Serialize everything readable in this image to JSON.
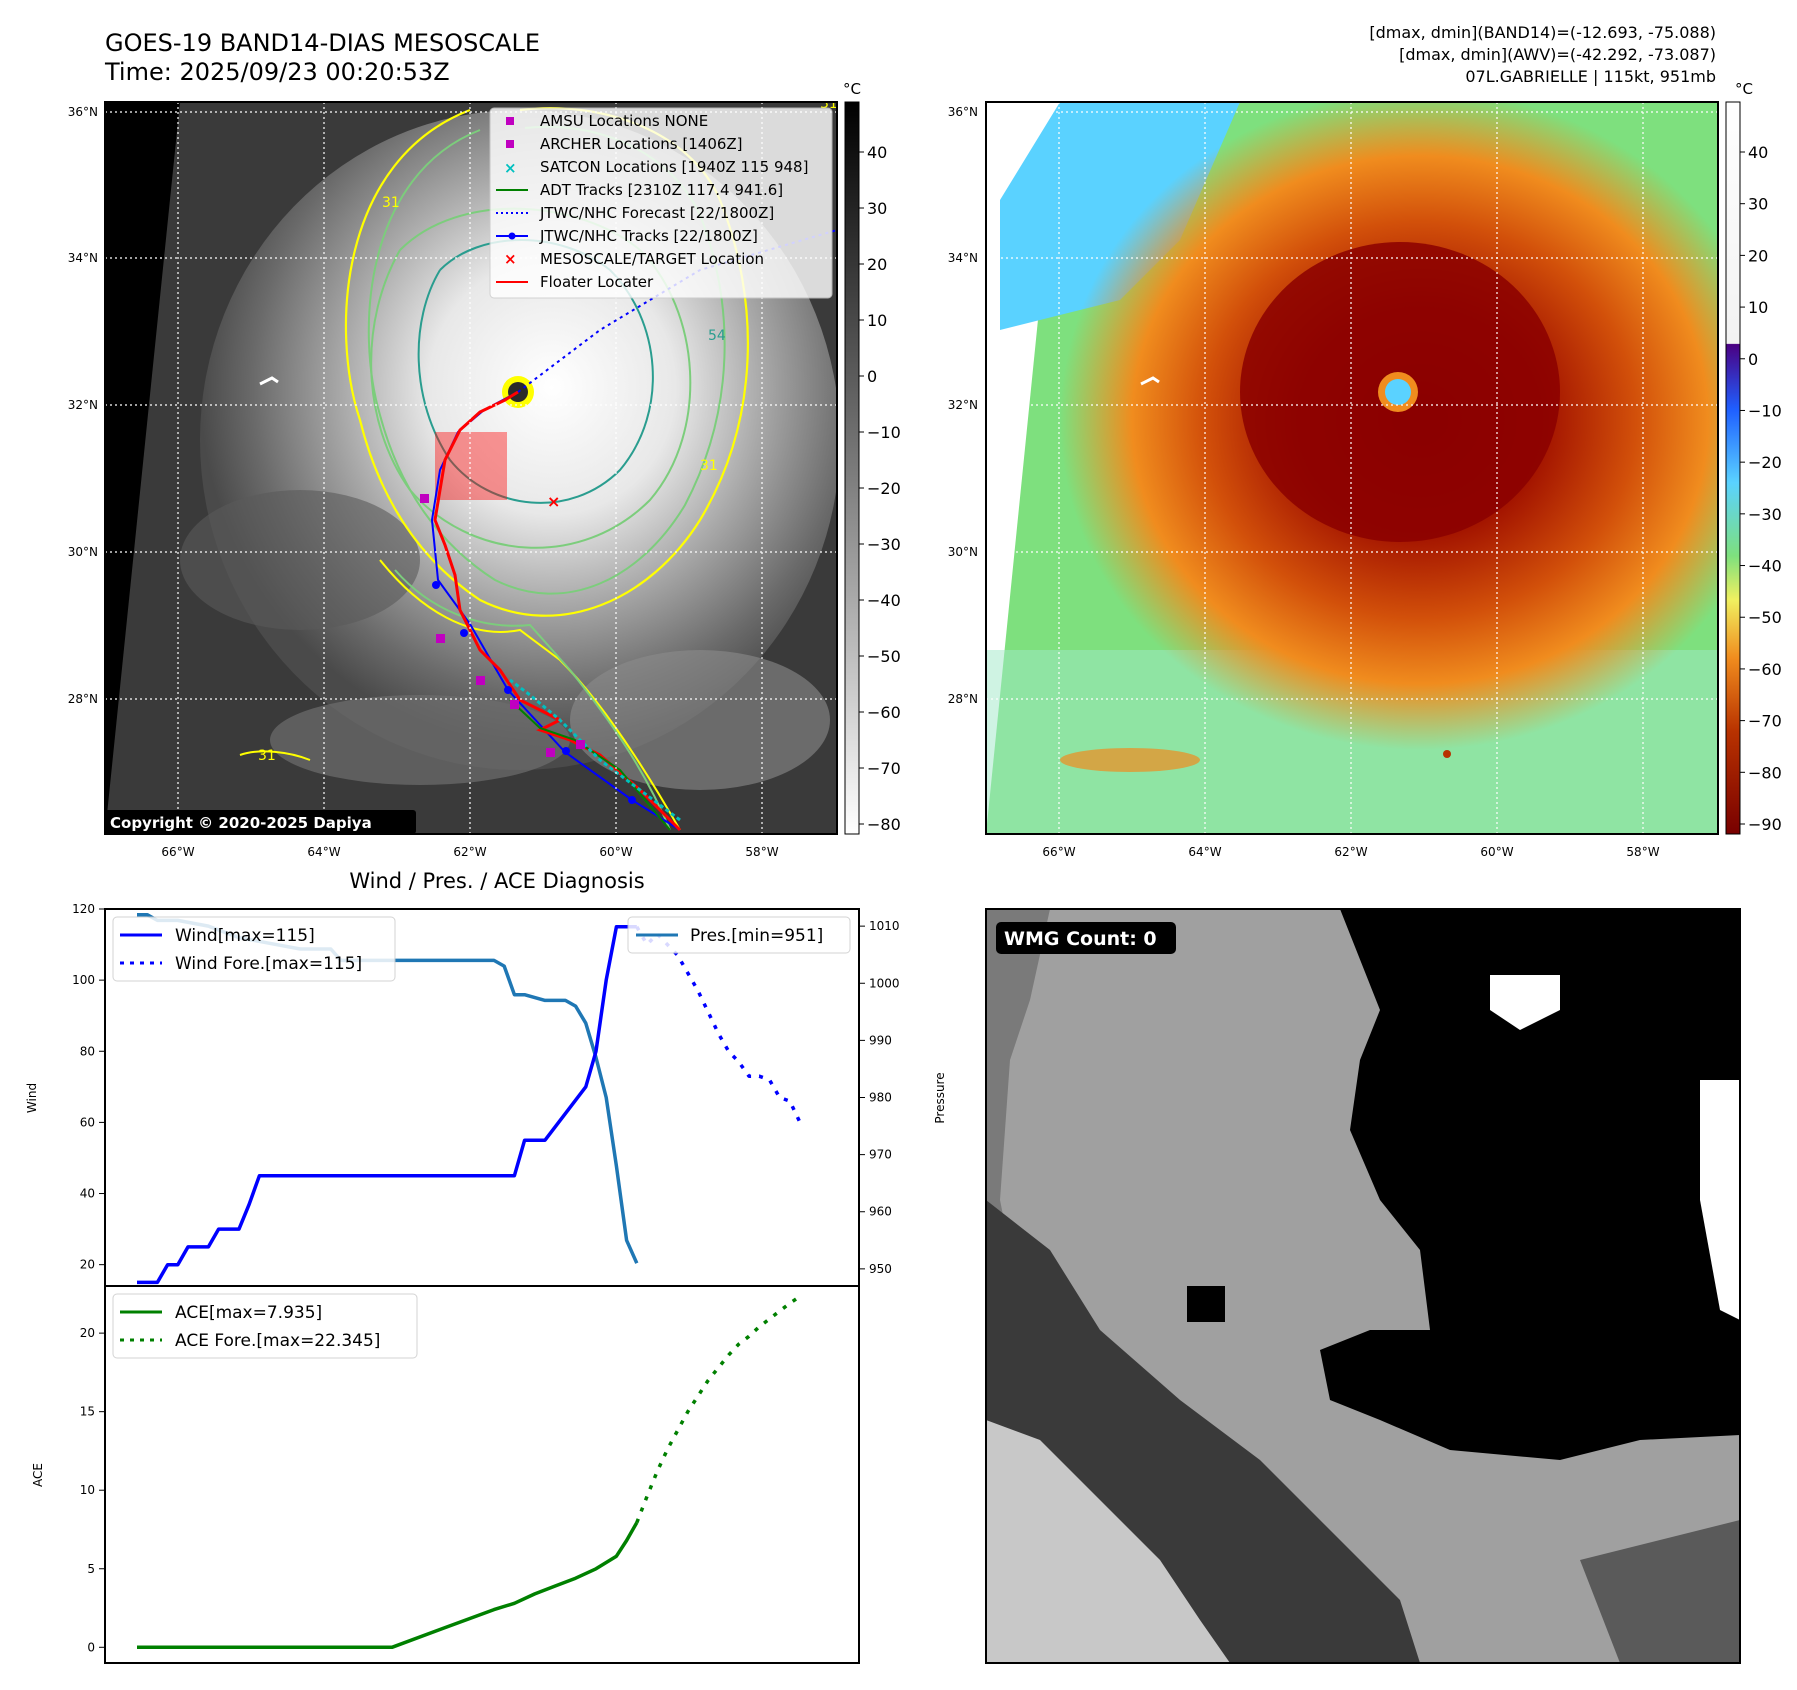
{
  "header": {
    "title_line1": "GOES-19 BAND14-DIAS MESOSCALE",
    "title_line2": "Time: 2025/09/23 00:20:53Z",
    "info_line1": "[dmax, dmin](BAND14)=(-12.693, -75.088)",
    "info_line2": "[dmax, dmin](AWV)=(-42.292, -73.087)",
    "info_line3": "07L.GABRIELLE | 115kt, 951mb"
  },
  "colors": {
    "wind": "#0000ff",
    "pressure": "#1f77b4",
    "ace": "#008000",
    "contour_yellow": "#ffff00",
    "contour_green": "#7ccd7c",
    "contour_teal": "#2a9d8f",
    "track_red": "#ff0000",
    "archer": "#c000c0",
    "satcon": "#00c0c0"
  },
  "map_axes": {
    "lat_ticks": [
      "36°N",
      "34°N",
      "32°N",
      "30°N",
      "28°N"
    ],
    "lon_ticks": [
      "66°W",
      "64°W",
      "62°W",
      "60°W",
      "58°W"
    ],
    "copyright": "Copyright © 2020-2025 Dapiya"
  },
  "colorbar_ir": {
    "unit": "°C",
    "ticks": [
      "40",
      "30",
      "20",
      "10",
      "0",
      "−10",
      "−20",
      "−30",
      "−40",
      "−50",
      "−60",
      "−70",
      "−80"
    ]
  },
  "colorbar_awv": {
    "unit": "°C",
    "ticks": [
      "40",
      "30",
      "20",
      "10",
      "0",
      "−10",
      "−20",
      "−30",
      "−40",
      "−50",
      "−60",
      "−70",
      "−80",
      "−90"
    ]
  },
  "legend": {
    "amsu": "AMSU Locations NONE",
    "archer": "ARCHER Locations [1406Z]",
    "satcon": "SATCON Locations [1940Z 115 948]",
    "adt": "ADT Tracks [2310Z 117.4 941.6]",
    "forecast": "JTWC/NHC Forecast [22/1800Z]",
    "tracks": "JTWC/NHC Tracks [22/1800Z]",
    "target": "MESOSCALE/TARGET Location",
    "floater": "Floater Locater"
  },
  "contour_labels": [
    "31",
    "54",
    "31",
    "31",
    "31"
  ],
  "wmg": {
    "label": "WMG Count: 0"
  },
  "chart_data": [
    {
      "type": "line",
      "title": "Wind / Pres. / ACE Diagnosis",
      "ylabel": "Wind",
      "ylabel_right": "Pressure",
      "ylim": [
        14,
        120
      ],
      "ylim_right": [
        947,
        1013
      ],
      "yticks": [
        "120",
        "100",
        "80",
        "60",
        "40",
        "20"
      ],
      "yticks_right": [
        "1010",
        "1000",
        "990",
        "980",
        "970",
        "960",
        "950"
      ],
      "legend_wind": "Wind[max=115]",
      "legend_wind_fore": "Wind Fore.[max=115]",
      "legend_pres": "Pres.[min=951]",
      "series": [
        {
          "name": "Wind[max=115]",
          "x": [
            0,
            2,
            3,
            4,
            5,
            6,
            7,
            8,
            10,
            11,
            12,
            15,
            25,
            37,
            38,
            40,
            44,
            45,
            46,
            47,
            49
          ],
          "values": [
            15,
            15,
            20,
            20,
            25,
            25,
            25,
            30,
            30,
            37,
            45,
            45,
            45,
            45,
            55,
            55,
            70,
            80,
            100,
            115,
            115
          ]
        },
        {
          "name": "Wind Fore.[max=115]",
          "x": [
            49,
            50,
            51,
            52,
            53,
            54,
            55,
            56,
            57,
            58,
            59,
            60,
            61,
            62,
            63,
            64,
            65
          ],
          "values": [
            115,
            110,
            113,
            110,
            107,
            102,
            97,
            91,
            85,
            80,
            77,
            73,
            73,
            72,
            67,
            66,
            60
          ]
        },
        {
          "name": "Pres.[min=951]",
          "x": [
            0,
            1,
            2,
            4,
            7,
            10,
            13,
            16,
            19,
            20,
            22,
            24,
            26,
            28,
            30,
            32,
            34,
            35,
            36,
            37,
            38,
            40,
            42,
            43,
            44,
            45,
            46,
            47,
            48,
            49
          ],
          "values": [
            1012,
            1012,
            1011,
            1011,
            1010,
            1008,
            1007,
            1006,
            1006,
            1004,
            1004,
            1004,
            1004,
            1004,
            1004,
            1004,
            1004,
            1004,
            1003,
            998,
            998,
            997,
            997,
            996,
            993,
            987,
            980,
            968,
            955,
            951
          ]
        }
      ]
    },
    {
      "type": "line",
      "ylabel": "ACE",
      "ylim": [
        -1,
        23
      ],
      "yticks": [
        "20",
        "15",
        "10",
        "5",
        "0"
      ],
      "legend_ace": "ACE[max=7.935]",
      "legend_ace_fore": "ACE Fore.[max=22.345]",
      "series": [
        {
          "name": "ACE[max=7.935]",
          "x": [
            0,
            5,
            10,
            15,
            20,
            25,
            30,
            35,
            37,
            39,
            41,
            43,
            45,
            47,
            48,
            49
          ],
          "values": [
            0,
            0,
            0,
            0,
            0,
            0,
            1.2,
            2.4,
            2.8,
            3.4,
            3.9,
            4.4,
            5.0,
            5.8,
            6.8,
            7.935
          ]
        },
        {
          "name": "ACE Fore.[max=22.345]",
          "x": [
            49,
            50,
            51,
            52,
            53,
            54,
            55,
            56,
            57,
            58,
            59,
            60,
            61,
            62,
            63,
            64,
            65
          ],
          "values": [
            7.935,
            9.6,
            11.2,
            12.6,
            13.8,
            15.0,
            16.0,
            17.0,
            17.8,
            18.6,
            19.3,
            19.8,
            20.4,
            20.9,
            21.4,
            21.9,
            22.345
          ]
        }
      ]
    }
  ]
}
